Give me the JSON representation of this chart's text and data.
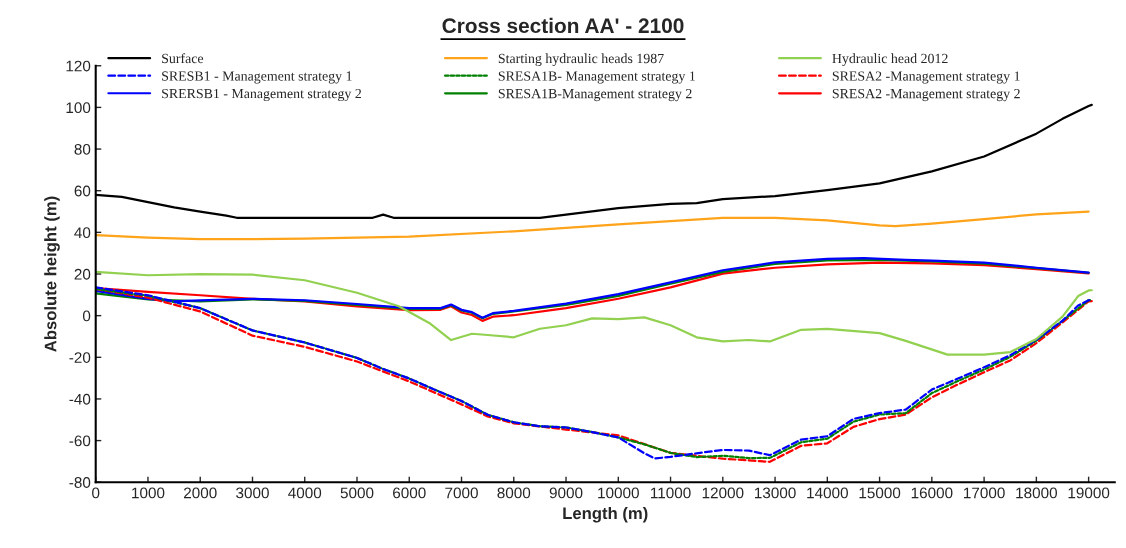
{
  "chart_data": {
    "type": "line",
    "title": "Cross section AA' - 2100",
    "xlabel": "Length (m)",
    "ylabel": "Absolute height (m)",
    "xlim": [
      0,
      19500
    ],
    "xticks": [
      0,
      1000,
      2000,
      3000,
      4000,
      5000,
      6000,
      7000,
      8000,
      9000,
      10000,
      11000,
      12000,
      13000,
      14000,
      15000,
      16000,
      17000,
      18000,
      19000
    ],
    "ylim": [
      -80,
      120
    ],
    "yticks": [
      -80,
      -60,
      -40,
      -20,
      0,
      20,
      40,
      60,
      80,
      100,
      120
    ],
    "grid": false,
    "legend": "top",
    "marker": "none",
    "series": [
      {
        "name": "Surface",
        "color": "#000000",
        "line_style": "solid",
        "x": [
          0,
          500,
          1000,
          1500,
          2000,
          2500,
          2700,
          5300,
          5500,
          5700,
          8500,
          9000,
          10000,
          11000,
          11500,
          12000,
          13000,
          14000,
          15000,
          16000,
          17000,
          18000,
          18500,
          19000,
          19060
        ],
        "values": [
          58,
          57,
          54.5,
          52,
          50,
          48,
          47,
          47,
          48.5,
          47,
          47,
          48.5,
          51.6,
          53.7,
          54,
          56,
          57.4,
          60.3,
          63.5,
          69.3,
          76.4,
          87.4,
          94.5,
          100.7,
          101.2
        ]
      },
      {
        "name": "Starting hydraulic heads 1987",
        "color": "#ffa31a",
        "line_style": "solid",
        "x": [
          0,
          1000,
          2000,
          3000,
          4000,
          6000,
          8000,
          10000,
          12000,
          13000,
          14000,
          15000,
          15300,
          16000,
          17000,
          18000,
          19000
        ],
        "values": [
          38.7,
          37.5,
          36.8,
          36.7,
          37,
          38,
          40.5,
          43.8,
          47,
          47,
          45.8,
          43.3,
          43,
          44.2,
          46.4,
          48.6,
          50
        ]
      },
      {
        "name": "Hydraulic head 2012",
        "color": "#92d050",
        "line_style": "solid",
        "x": [
          0,
          1000,
          2000,
          3000,
          4000,
          5000,
          5800,
          6400,
          6800,
          7200,
          7500,
          8000,
          8500,
          9000,
          9500,
          10000,
          10500,
          11000,
          11500,
          12000,
          12500,
          12900,
          13500,
          14000,
          15000,
          15500,
          16300,
          17000,
          17500,
          18000,
          18500,
          18800,
          19000,
          19060
        ],
        "values": [
          21,
          19.4,
          19.9,
          19.7,
          17,
          11,
          4.5,
          -3.8,
          -11.7,
          -8.7,
          -9.3,
          -10.4,
          -6.3,
          -4.6,
          -1.3,
          -1.7,
          -0.8,
          -4.6,
          -10.4,
          -12.4,
          -11.7,
          -12.4,
          -6.8,
          -6.4,
          -8.4,
          -12.1,
          -18.7,
          -18.7,
          -17.5,
          -11.2,
          -0.5,
          9.4,
          12.1,
          12.2
        ]
      },
      {
        "name": "SRESB1 - Management strategy 1",
        "color": "#0000ff",
        "line_style": "dashed",
        "x": [
          0,
          1000,
          2000,
          3000,
          4000,
          5000,
          5500,
          6000,
          6500,
          7000,
          7500,
          8000,
          8500,
          9000,
          9500,
          10000,
          10500,
          10700,
          11000,
          11500,
          12000,
          12500,
          12900,
          13500,
          14000,
          14500,
          15000,
          15500,
          16000,
          16500,
          17000,
          17500,
          18000,
          18500,
          18800,
          19000,
          19060
        ],
        "values": [
          13.6,
          9.8,
          3.6,
          -7.1,
          -12.9,
          -20.3,
          -25.6,
          -30.2,
          -35.7,
          -41,
          -47.6,
          -51.2,
          -53.1,
          -53.7,
          -55.9,
          -58.5,
          -66.1,
          -68.6,
          -67.8,
          -66.1,
          -64.5,
          -64.8,
          -67,
          -59.5,
          -57.9,
          -49.6,
          -46.8,
          -45.1,
          -35.5,
          -30.2,
          -24.8,
          -19,
          -11.6,
          -2.5,
          4.9,
          7.4,
          7.4
        ]
      },
      {
        "name": "SRESA1B- Management strategy 1",
        "color": "#008000",
        "line_style": "dotted",
        "x": [
          0,
          1000,
          2000,
          3000,
          4000,
          5000,
          5500,
          6000,
          6500,
          7000,
          7500,
          8000,
          8500,
          9000,
          9500,
          10000,
          10500,
          11000,
          11500,
          12000,
          12500,
          12900,
          13500,
          14000,
          14500,
          15000,
          15500,
          16000,
          16500,
          17000,
          17500,
          18000,
          18500,
          19000,
          19060
        ],
        "values": [
          12.8,
          9.5,
          3.6,
          -7.1,
          -12.9,
          -20.3,
          -25.6,
          -30.2,
          -35.7,
          -41,
          -47.6,
          -51.2,
          -53.1,
          -53.7,
          -55.9,
          -58.5,
          -61.8,
          -65.9,
          -67.9,
          -67.3,
          -68.4,
          -68.3,
          -60.8,
          -59.1,
          -50.9,
          -47.5,
          -46.8,
          -37.2,
          -31.4,
          -25.9,
          -19.8,
          -12,
          -2.5,
          7.4,
          7.6
        ]
      },
      {
        "name": "SRESA2 -Management strategy 1",
        "color": "#ff0000",
        "line_style": "dashed",
        "x": [
          0,
          1000,
          2000,
          3000,
          4000,
          5000,
          6000,
          7000,
          7500,
          8000,
          9000,
          10000,
          11000,
          12000,
          12500,
          12900,
          13500,
          14000,
          14500,
          15000,
          15500,
          16000,
          16500,
          17000,
          17500,
          18000,
          18500,
          19000,
          19060
        ],
        "values": [
          12.8,
          8.6,
          2,
          -9.6,
          -15,
          -22,
          -31.6,
          -42.6,
          -48.4,
          -51.7,
          -54.7,
          -57.5,
          -65.9,
          -68.7,
          -69.5,
          -70.2,
          -62.5,
          -61.3,
          -53.4,
          -49.7,
          -47.5,
          -39.2,
          -33,
          -27.2,
          -21.5,
          -13.2,
          -3.3,
          6.9,
          7
        ]
      },
      {
        "name": "SRERSB1 - Management strategy 2",
        "color": "#0000ff",
        "line_style": "solid",
        "x": [
          0,
          1000,
          1500,
          2000,
          3000,
          4000,
          5000,
          6000,
          6600,
          6800,
          7000,
          7200,
          7400,
          7600,
          8000,
          9000,
          10000,
          11000,
          12000,
          13000,
          14000,
          14700,
          15500,
          16000,
          17000,
          18000,
          19000
        ],
        "values": [
          11.9,
          8.1,
          6.9,
          7.3,
          8.1,
          7.4,
          5.6,
          3.6,
          3.6,
          5.3,
          2.8,
          1.7,
          -1,
          1.2,
          2.3,
          5.8,
          10.3,
          16,
          21.8,
          25.6,
          27.3,
          27.6,
          26.8,
          26.4,
          25.5,
          23,
          20.7
        ]
      },
      {
        "name": "SRESA1B-Management strategy 2",
        "color": "#008000",
        "line_style": "solid",
        "x": [
          0,
          1000,
          2000,
          3000,
          4000,
          5000,
          6000,
          6600,
          6800,
          7000,
          7200,
          7400,
          7600,
          8000,
          9000,
          10000,
          11000,
          12000,
          13000,
          14000,
          15000,
          16000,
          17000,
          18000,
          19000
        ],
        "values": [
          10.7,
          7.8,
          6.9,
          7.8,
          7.1,
          5.2,
          3.3,
          3.3,
          5,
          2.5,
          1.4,
          -1.3,
          0.9,
          2,
          5.2,
          9.5,
          15.3,
          21,
          24.8,
          26.5,
          26.8,
          26,
          25,
          22.8,
          20.6
        ]
      },
      {
        "name": "SRESA2 -Management strategy 2",
        "color": "#ff0000",
        "line_style": "solid",
        "x": [
          0,
          1000,
          2000,
          3000,
          4000,
          5000,
          6000,
          6600,
          6800,
          7000,
          7200,
          7400,
          7600,
          8000,
          9000,
          10000,
          11000,
          12000,
          13000,
          14000,
          15000,
          16000,
          17000,
          18000,
          19000
        ],
        "values": [
          13.2,
          11.4,
          9.8,
          8.1,
          6.8,
          4.5,
          2.6,
          2.8,
          4.5,
          1.5,
          0.3,
          -2.5,
          -0.5,
          0.2,
          3.6,
          8.1,
          13.6,
          20.2,
          23,
          24.6,
          25.5,
          25.1,
          24.3,
          22.3,
          20.3
        ]
      }
    ]
  }
}
